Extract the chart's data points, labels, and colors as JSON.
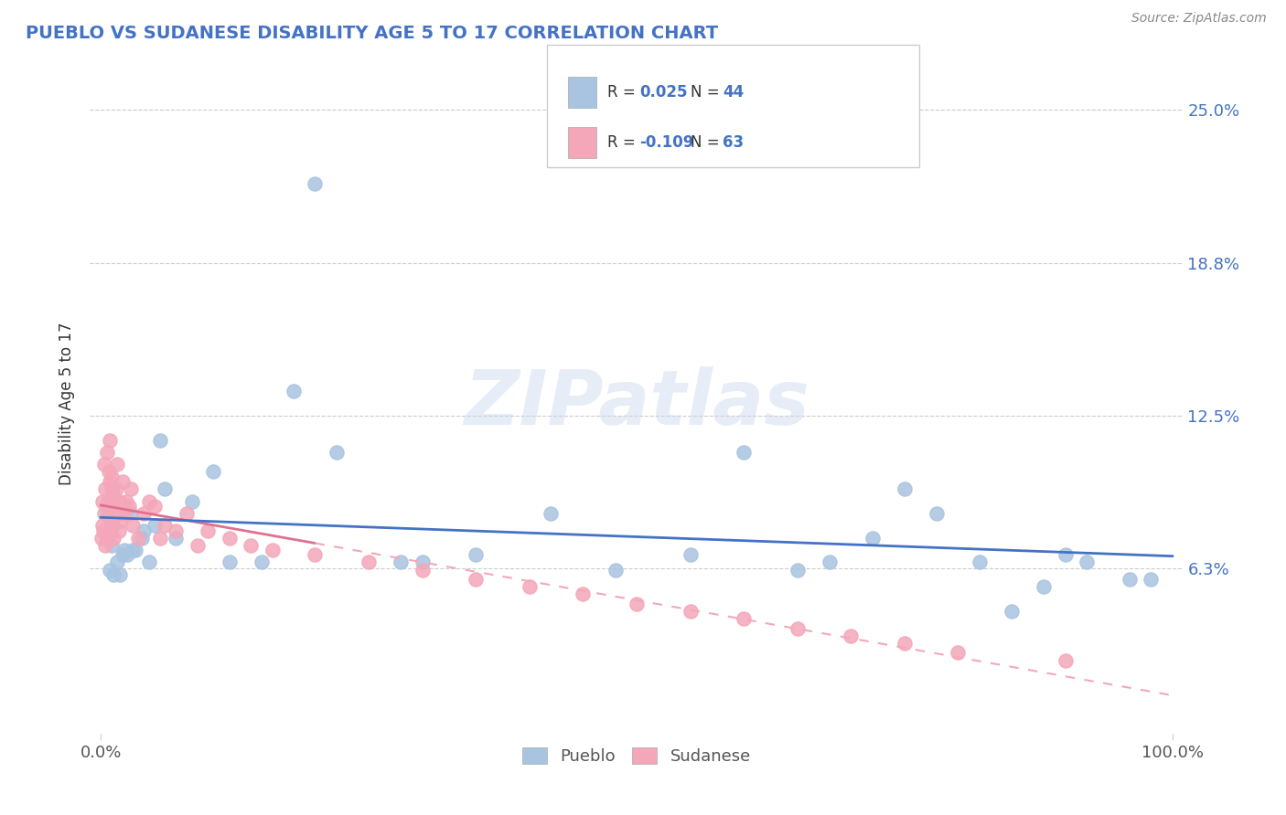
{
  "title": "PUEBLO VS SUDANESE DISABILITY AGE 5 TO 17 CORRELATION CHART",
  "source_text": "Source: ZipAtlas.com",
  "ylabel": "Disability Age 5 to 17",
  "xlim": [
    0,
    100
  ],
  "ylim": [
    0,
    25
  ],
  "yticks": [
    6.25,
    12.5,
    18.75,
    25.0
  ],
  "ytick_labels": [
    "6.3%",
    "12.5%",
    "18.8%",
    "25.0%"
  ],
  "xticks": [
    0,
    100
  ],
  "xtick_labels": [
    "0.0%",
    "100.0%"
  ],
  "pueblo_color": "#a8c4e0",
  "sudanese_color": "#f4a7b9",
  "pueblo_line_color": "#4472c4",
  "sudanese_line_solid_color": "#e07090",
  "sudanese_line_dashed_color": "#f4a7b9",
  "watermark": "ZIPatlas",
  "legend_R_pueblo": "0.025",
  "legend_N_pueblo": "44",
  "legend_R_sudanese": "-0.109",
  "legend_N_sudanese": "63",
  "pueblo_x": [
    1.5,
    2.0,
    3.2,
    4.5,
    1.0,
    1.8,
    2.5,
    3.8,
    0.8,
    2.2,
    5.5,
    18.0,
    10.5,
    22.0,
    28.0,
    35.0,
    42.0,
    55.0,
    60.0,
    65.0,
    72.0,
    78.0,
    85.0,
    88.0,
    92.0,
    96.0,
    2.8,
    4.0,
    6.0,
    8.5,
    12.0,
    30.0,
    48.0,
    68.0,
    75.0,
    82.0,
    90.0,
    98.0,
    1.2,
    3.0,
    5.0,
    7.0,
    15.0,
    20.0
  ],
  "pueblo_y": [
    6.5,
    6.8,
    7.0,
    6.5,
    7.2,
    6.0,
    6.8,
    7.5,
    6.2,
    7.0,
    11.5,
    13.5,
    10.2,
    11.0,
    6.5,
    6.8,
    8.5,
    6.8,
    11.0,
    6.2,
    7.5,
    8.5,
    4.5,
    5.5,
    6.5,
    5.8,
    8.5,
    7.8,
    9.5,
    9.0,
    6.5,
    6.5,
    6.2,
    6.5,
    9.5,
    6.5,
    6.8,
    5.8,
    6.0,
    7.0,
    8.0,
    7.5,
    6.5,
    22.0
  ],
  "sudanese_x": [
    0.1,
    0.15,
    0.2,
    0.25,
    0.3,
    0.35,
    0.4,
    0.45,
    0.5,
    0.55,
    0.6,
    0.65,
    0.7,
    0.75,
    0.8,
    0.85,
    0.9,
    0.95,
    1.0,
    1.05,
    1.1,
    1.15,
    1.2,
    1.3,
    1.4,
    1.5,
    1.6,
    1.7,
    1.8,
    1.9,
    2.0,
    2.2,
    2.4,
    2.6,
    2.8,
    3.0,
    3.5,
    4.0,
    4.5,
    5.0,
    5.5,
    6.0,
    7.0,
    8.0,
    9.0,
    10.0,
    12.0,
    14.0,
    16.0,
    20.0,
    25.0,
    30.0,
    35.0,
    40.0,
    45.0,
    50.0,
    55.0,
    60.0,
    65.0,
    70.0,
    75.0,
    80.0,
    90.0
  ],
  "sudanese_y": [
    7.5,
    8.0,
    9.0,
    7.8,
    10.5,
    8.5,
    9.5,
    7.2,
    8.8,
    11.0,
    7.5,
    9.0,
    8.5,
    10.2,
    11.5,
    9.8,
    8.2,
    7.8,
    10.0,
    9.5,
    8.0,
    7.5,
    9.2,
    8.8,
    9.5,
    10.5,
    8.5,
    7.8,
    9.0,
    8.2,
    9.8,
    8.5,
    9.0,
    8.8,
    9.5,
    8.0,
    7.5,
    8.5,
    9.0,
    8.8,
    7.5,
    8.0,
    7.8,
    8.5,
    7.2,
    7.8,
    7.5,
    7.2,
    7.0,
    6.8,
    6.5,
    6.2,
    5.8,
    5.5,
    5.2,
    4.8,
    4.5,
    4.2,
    3.8,
    3.5,
    3.2,
    2.8,
    2.5
  ],
  "sudanese_transition_x": 20.0
}
